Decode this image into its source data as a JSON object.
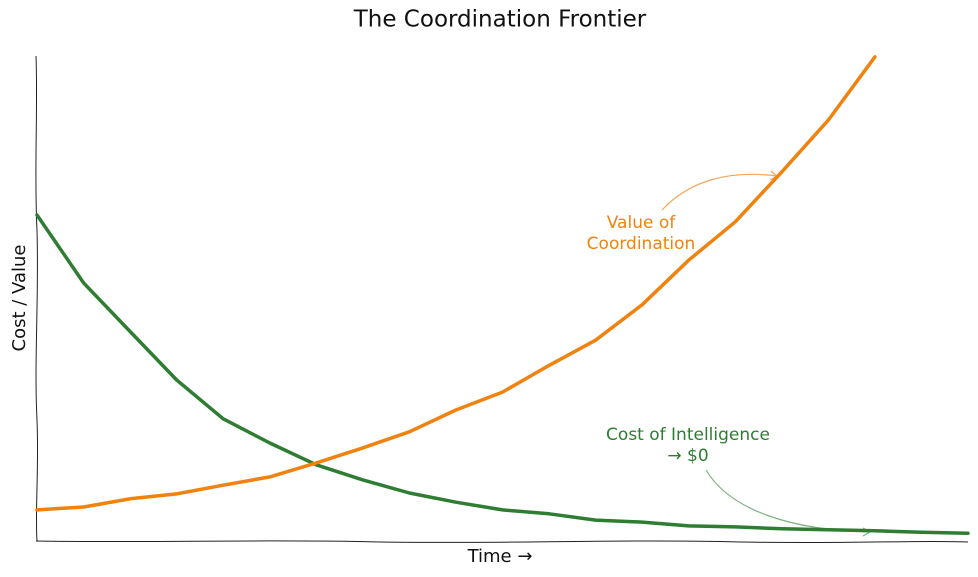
{
  "chart_data": {
    "type": "line",
    "title": "The Coordination Frontier",
    "x_label": "Time →",
    "y_label": "Cost / Value",
    "x": [
      0,
      0.5,
      1,
      1.5,
      2,
      2.5,
      3,
      3.5,
      4,
      4.5,
      5,
      5.5,
      6,
      6.5,
      7,
      7.5,
      8,
      8.5,
      9,
      9.5,
      10
    ],
    "xlim": [
      0,
      10
    ],
    "ylim": [
      0,
      10
    ],
    "series": [
      {
        "name": "Cost of Intelligence",
        "color": "#2e7d32",
        "values": [
          6.7,
          5.3,
          4.3,
          3.3,
          2.5,
          2.0,
          1.55,
          1.24,
          0.97,
          0.78,
          0.62,
          0.54,
          0.41,
          0.37,
          0.29,
          0.27,
          0.23,
          0.21,
          0.19,
          0.16,
          0.14
        ]
      },
      {
        "name": "Value of Coordination",
        "color": "#f0820f",
        "values": [
          0.62,
          0.68,
          0.85,
          0.95,
          1.13,
          1.3,
          1.59,
          1.9,
          2.23,
          2.68,
          3.05,
          3.6,
          4.12,
          4.85,
          5.77,
          6.56,
          7.59,
          8.66,
          9.96,
          null,
          null
        ]
      }
    ],
    "annotations": [
      {
        "lines": [
          "Value of",
          "Coordination"
        ],
        "color": "#f0820f"
      },
      {
        "lines": [
          "Cost of Intelligence",
          "→ $0"
        ],
        "color": "#2e7d32"
      }
    ]
  }
}
